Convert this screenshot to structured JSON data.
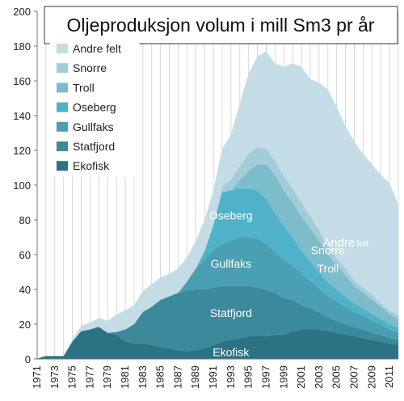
{
  "chart_data": {
    "type": "area",
    "stacked": true,
    "title": "Oljeproduksjon volum i mill Sm3 pr år",
    "xlabel": "",
    "ylabel": "",
    "ylim": [
      0,
      200
    ],
    "yticks": [
      "0",
      "20",
      "40",
      "60",
      "80",
      "100",
      "120",
      "140",
      "160",
      "180",
      "200"
    ],
    "x": [
      1971,
      1972,
      1973,
      1974,
      1975,
      1976,
      1977,
      1978,
      1979,
      1980,
      1981,
      1982,
      1983,
      1984,
      1985,
      1986,
      1987,
      1988,
      1989,
      1990,
      1991,
      1992,
      1993,
      1994,
      1995,
      1996,
      1997,
      1998,
      1999,
      2000,
      2001,
      2002,
      2003,
      2004,
      2005,
      2006,
      2007,
      2008,
      2009,
      2010,
      2011,
      2012
    ],
    "xtick_labels": [
      "1971",
      "1973",
      "1975",
      "1977",
      "1979",
      "1981",
      "1983",
      "1985",
      "1987",
      "1989",
      "1991",
      "1993",
      "1995",
      "1997",
      "1999",
      "2001",
      "2003",
      "2005",
      "2007",
      "2009",
      "2011"
    ],
    "grid": "vertical",
    "legend_position": "top-left",
    "series": [
      {
        "name": "Ekofisk",
        "color": "#2b7384",
        "values": [
          0.3,
          1.7,
          1.7,
          1.7,
          10,
          16,
          17,
          18.5,
          15,
          14,
          10,
          9,
          9,
          8,
          7,
          6,
          5,
          4.5,
          5,
          6,
          8,
          10,
          11,
          12,
          13,
          13,
          13,
          14,
          14,
          16,
          17,
          17,
          17,
          16,
          15,
          14,
          13,
          12,
          11,
          10,
          9,
          8
        ]
      },
      {
        "name": "Statfjord",
        "color": "#3a8a9c",
        "values": [
          0,
          0,
          0,
          0,
          0,
          0,
          0,
          0,
          0,
          1.5,
          7,
          11,
          18,
          22,
          27,
          30,
          33,
          35,
          35,
          34,
          33,
          32,
          31,
          30,
          29,
          28,
          27,
          24,
          21,
          18,
          14,
          12,
          10,
          8,
          7,
          6,
          5,
          5,
          4,
          4,
          3,
          3
        ]
      },
      {
        "name": "Gullfaks",
        "color": "#4a9fb2",
        "values": [
          0,
          0,
          0,
          0,
          0,
          0,
          0,
          0,
          0,
          0,
          0,
          0,
          0,
          0,
          0,
          0,
          0,
          5,
          12,
          17,
          22,
          24,
          26,
          28,
          28,
          28,
          26,
          24,
          22,
          20,
          18,
          16,
          14,
          12,
          11,
          10,
          9,
          8,
          7,
          6,
          5,
          4
        ]
      },
      {
        "name": "Oseberg",
        "color": "#4fb2c8",
        "values": [
          0,
          0,
          0,
          0,
          0,
          0,
          0,
          0,
          0,
          0,
          0,
          0,
          0,
          0,
          0,
          0,
          0,
          0,
          0,
          5,
          14,
          30,
          29,
          28,
          28,
          28,
          26,
          22,
          19,
          16,
          13,
          11,
          9,
          8,
          7,
          6,
          5,
          4,
          4,
          3,
          3,
          3
        ]
      },
      {
        "name": "Troll",
        "color": "#7cbccb",
        "values": [
          0,
          0,
          0,
          0,
          0,
          0,
          0,
          0,
          0,
          0,
          0,
          0,
          0,
          0,
          0,
          0,
          0,
          0,
          0,
          0,
          0,
          0,
          0,
          5,
          10,
          15,
          20,
          22,
          21,
          20,
          20,
          19,
          18,
          16,
          14,
          12,
          10,
          9,
          8,
          7,
          6,
          5
        ]
      },
      {
        "name": "Snorre",
        "color": "#a3ccd8",
        "values": [
          0,
          0,
          0,
          0,
          0,
          0,
          0,
          0,
          0,
          0,
          0,
          0,
          0,
          0,
          0,
          0,
          0,
          0,
          0,
          0,
          0,
          3,
          6,
          8,
          10,
          10,
          9,
          8,
          8,
          8,
          8,
          7,
          6,
          5,
          4,
          4,
          3,
          3,
          3,
          2,
          2,
          2
        ]
      },
      {
        "name": "Andre felt",
        "color": "#c4dce5",
        "values": [
          0,
          0,
          0,
          0,
          1,
          3,
          4,
          5,
          7,
          10,
          11,
          11,
          12,
          13,
          13,
          13,
          14,
          14,
          16,
          18,
          20,
          22,
          26,
          36,
          46,
          52,
          56,
          56,
          63,
          72,
          78,
          79,
          85,
          90,
          87,
          82,
          80,
          77,
          75,
          74,
          73,
          64
        ]
      }
    ],
    "area_labels": [
      {
        "text": "Andre",
        "small": "felt"
      },
      {
        "text": "Snorre"
      },
      {
        "text": "Troll"
      },
      {
        "text": "Oseberg"
      },
      {
        "text": "Gullfaks"
      },
      {
        "text": "Statfjord"
      },
      {
        "text": "Ekofisk"
      }
    ]
  }
}
